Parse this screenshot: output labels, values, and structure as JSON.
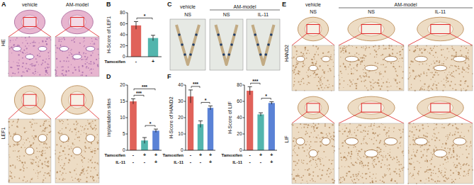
{
  "figure": {
    "panels": [
      {
        "label": "A",
        "columns": [
          "vehicle",
          "AM-model"
        ],
        "rows": [
          "HE",
          "LEF1"
        ]
      },
      {
        "label": "C",
        "groups": [
          "vehicle",
          "AM-model"
        ],
        "columns": [
          "NS",
          "NS",
          "IL-11"
        ]
      },
      {
        "label": "E",
        "groups": [
          "vehicle",
          "AM-model"
        ],
        "columns": [
          "NS",
          "NS",
          "IL-11"
        ],
        "rows": [
          "HAND2",
          "LIF"
        ]
      }
    ]
  },
  "chart_data": [
    {
      "type": "bar",
      "panel": "B",
      "y_label": "H-Score of LEF1",
      "categories": [
        null,
        null
      ],
      "conditions": [
        {
          "name": "Tamoxifen",
          "values": [
            "-",
            "+"
          ]
        }
      ],
      "values": [
        57,
        34
      ],
      "errors": [
        7,
        5
      ],
      "colors": [
        "#e0625a",
        "#53b5ad"
      ],
      "ylim": [
        0,
        80
      ],
      "yticks": [
        0,
        20,
        40,
        60,
        80
      ],
      "annotations": [
        {
          "text": "*",
          "between": [
            0,
            1
          ]
        }
      ]
    },
    {
      "type": "bar",
      "panel": "D",
      "y_label": "implantation sites",
      "categories": [
        null,
        null,
        null
      ],
      "conditions": [
        {
          "name": "Tamoxifen",
          "values": [
            "-",
            "+",
            "+"
          ]
        },
        {
          "name": "IL-11",
          "values": [
            "-",
            "-",
            "+"
          ]
        }
      ],
      "values": [
        15,
        3,
        6
      ],
      "errors": [
        0.8,
        0.9,
        0.5
      ],
      "colors": [
        "#e0625a",
        "#53b5ad",
        "#5a82d6"
      ],
      "ylim": [
        0,
        20
      ],
      "yticks": [
        0,
        5,
        10,
        15,
        20
      ],
      "annotations": [
        {
          "text": "***",
          "between": [
            0,
            1
          ]
        },
        {
          "text": "***",
          "between": [
            0,
            2
          ]
        },
        {
          "text": "*",
          "between": [
            1,
            2
          ]
        }
      ]
    },
    {
      "type": "bar",
      "panel": "F",
      "y_label": "H-Score of HAND2",
      "categories": [
        null,
        null,
        null
      ],
      "conditions": [
        {
          "name": "Tamoxifen",
          "values": [
            "-",
            "+",
            "+"
          ]
        },
        {
          "name": "IL-11",
          "values": [
            "-",
            "-",
            "+"
          ]
        }
      ],
      "values": [
        33,
        16,
        26
      ],
      "errors": [
        4,
        2,
        1.2
      ],
      "colors": [
        "#e0625a",
        "#53b5ad",
        "#5a82d6"
      ],
      "ylim": [
        0,
        40
      ],
      "yticks": [
        0,
        10,
        20,
        30,
        40
      ],
      "annotations": [
        {
          "text": "***",
          "between": [
            0,
            1
          ]
        },
        {
          "text": "*",
          "between": [
            1,
            2
          ]
        }
      ]
    },
    {
      "type": "bar",
      "y_label": "H-Score of LIF",
      "categories": [
        null,
        null,
        null
      ],
      "conditions": [
        {
          "name": "Tamoxifen",
          "values": [
            "-",
            "+",
            "+"
          ]
        },
        {
          "name": "IL-11",
          "values": [
            "-",
            "-",
            "+"
          ]
        }
      ],
      "values": [
        73,
        44,
        58
      ],
      "errors": [
        5,
        2,
        1.5
      ],
      "colors": [
        "#e0625a",
        "#53b5ad",
        "#5a82d6"
      ],
      "ylim": [
        0,
        80
      ],
      "yticks": [
        0,
        20,
        40,
        60,
        80
      ],
      "annotations": [
        {
          "text": "***",
          "between": [
            0,
            1
          ]
        },
        {
          "text": "*",
          "between": [
            1,
            2
          ]
        }
      ]
    }
  ]
}
